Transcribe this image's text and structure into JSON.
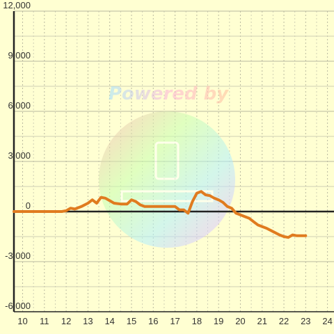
{
  "chart_data": {
    "type": "line",
    "title": "",
    "xlabel": "",
    "ylabel": "",
    "xlim": [
      9.6,
      24.3
    ],
    "ylim": [
      -6000,
      12000
    ],
    "x_ticks": [
      10,
      11,
      12,
      13,
      14,
      15,
      16,
      17,
      18,
      19,
      20,
      21,
      22,
      23,
      24
    ],
    "y_ticks": [
      -6000,
      -3000,
      0,
      3000,
      6000,
      9000,
      12000
    ],
    "x_tick_labels": [
      "10",
      "11",
      "12",
      "13",
      "14",
      "15",
      "16",
      "17",
      "18",
      "19",
      "20",
      "21",
      "22",
      "23",
      "24"
    ],
    "y_tick_labels": [
      "-6,000",
      "-3,000",
      "0",
      "3,000",
      "6,000",
      "9,000",
      "12,000"
    ],
    "grid": true,
    "series": [
      {
        "color": "#e07b1f",
        "x": [
          9.6,
          11.8,
          12.0,
          12.2,
          12.4,
          12.7,
          13.0,
          13.2,
          13.4,
          13.6,
          13.8,
          14.0,
          14.2,
          14.5,
          14.8,
          15.0,
          15.2,
          15.4,
          15.6,
          15.8,
          16.0,
          16.5,
          16.8,
          17.0,
          17.2,
          17.4,
          17.6,
          17.8,
          18.0,
          18.2,
          18.4,
          18.6,
          18.8,
          19.0,
          19.2,
          19.4,
          19.6,
          19.8,
          20.0,
          20.2,
          20.4,
          20.6,
          20.8,
          21.0,
          21.2,
          21.5,
          21.8,
          22.0,
          22.2,
          22.4,
          22.6,
          22.8,
          23.0
        ],
        "y": [
          0,
          0,
          50,
          200,
          150,
          300,
          500,
          700,
          500,
          850,
          800,
          650,
          500,
          450,
          450,
          700,
          600,
          400,
          300,
          300,
          300,
          300,
          300,
          300,
          100,
          100,
          -100,
          600,
          1100,
          1200,
          1000,
          950,
          800,
          700,
          550,
          300,
          200,
          -100,
          -200,
          -300,
          -400,
          -600,
          -800,
          -900,
          -1000,
          -1200,
          -1400,
          -1500,
          -1550,
          -1400,
          -1450,
          -1450,
          -1450
        ]
      }
    ]
  }
}
